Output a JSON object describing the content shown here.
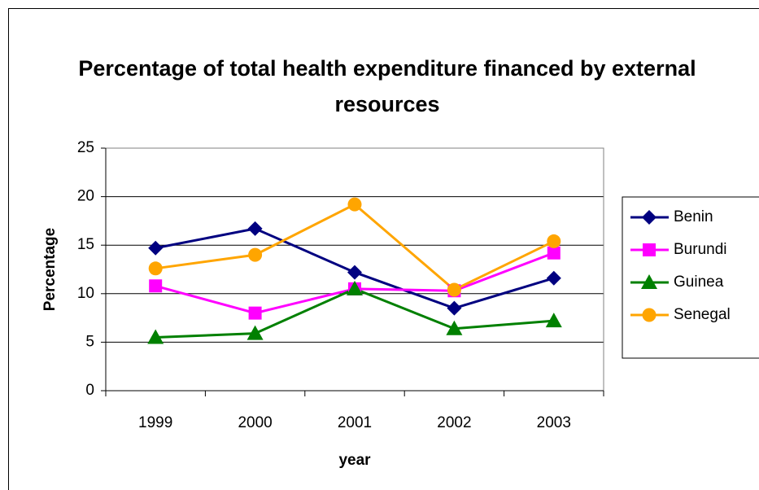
{
  "chart_data": {
    "type": "line",
    "title": "Percentage of total health expenditure financed by external resources",
    "x_label": "year",
    "y_label": "Percentage",
    "categories": [
      "1999",
      "2000",
      "2001",
      "2002",
      "2003"
    ],
    "series": [
      {
        "name": "Benin",
        "color": "#000080",
        "marker": "diamond",
        "values": [
          14.7,
          16.7,
          12.2,
          8.5,
          11.6
        ]
      },
      {
        "name": "Burundi",
        "color": "#ff00ff",
        "marker": "square",
        "values": [
          10.8,
          8.0,
          10.5,
          10.3,
          14.2
        ]
      },
      {
        "name": "Guinea",
        "color": "#008000",
        "marker": "triangle",
        "values": [
          5.5,
          5.9,
          10.5,
          6.4,
          7.2
        ]
      },
      {
        "name": "Senegal",
        "color": "#ffa500",
        "marker": "circle",
        "values": [
          12.6,
          14.0,
          19.2,
          10.4,
          15.4
        ]
      }
    ],
    "ylim": [
      0,
      25
    ],
    "yticks": [
      0,
      5,
      10,
      15,
      20,
      25
    ],
    "grid": true,
    "legend": "right"
  }
}
